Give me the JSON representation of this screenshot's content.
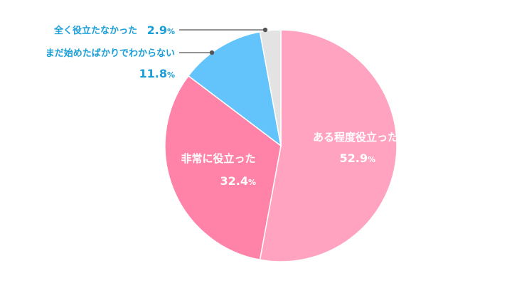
{
  "chart_data": {
    "type": "pie",
    "slices": [
      {
        "label": "ある程度役立った",
        "value": 52.9,
        "display": "52.9",
        "color": "#ffa3c1"
      },
      {
        "label": "非常に役立った",
        "value": 32.4,
        "display": "32.4",
        "color": "#ff82a8"
      },
      {
        "label": "まだ始めたばかりでわからない",
        "value": 11.8,
        "display": "11.8",
        "color": "#63c3fb"
      },
      {
        "label": "全く役立たなかった",
        "value": 2.9,
        "display": "2.9",
        "color": "#e3e3e3"
      }
    ],
    "unit": "%",
    "start_angle": "12 o'clock",
    "direction": "clockwise",
    "label_text_color": "#1a9ed8",
    "leader_color": "#555555"
  }
}
